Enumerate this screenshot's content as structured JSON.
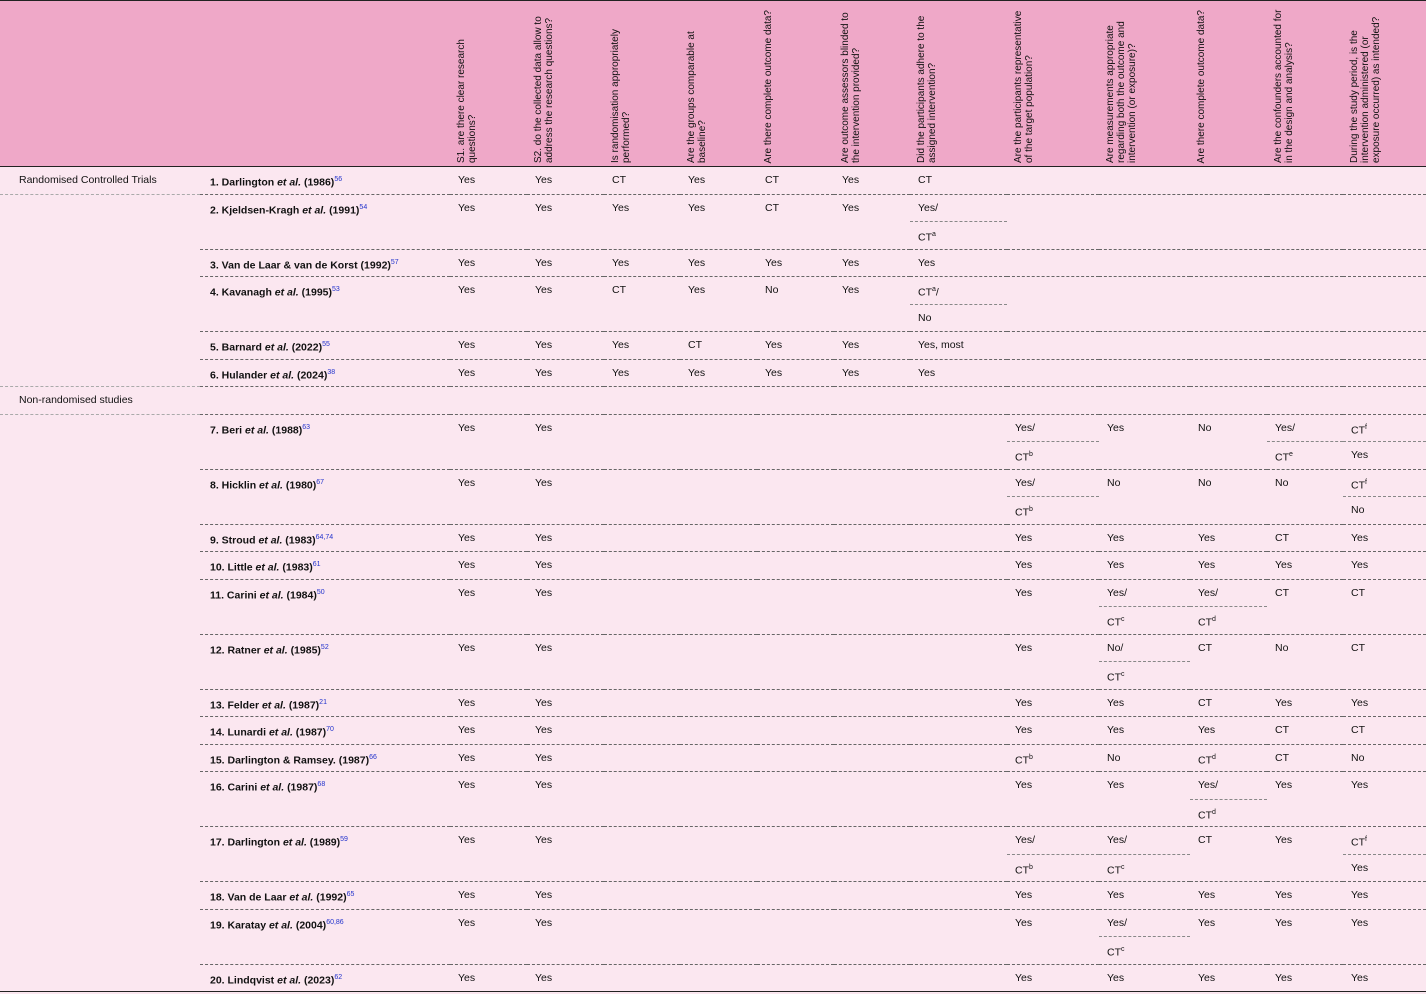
{
  "questions": [
    "S1. are there clear research questions?",
    "S2. do the collected data allow to address the research questions?",
    "Is randomisation appropriately performed?",
    "Are the groups comparable at baseline?",
    "Are there complete outcome data?",
    "Are outcome assessors blinded to the intervention provided?",
    "Did the participants adhere to the assigned intervention?",
    "Are the participants representative of the target population?",
    "Are measurements appropriate regarding both the outcome and intervention (or exposure)?",
    "Are there complete outcome data?",
    "Are the confounders accounted for in the design and analysis?",
    "During the study period, is the intervention administered (or exposure occurred) as intended?"
  ],
  "groups": [
    {
      "label": "Randomised Controlled Trials",
      "studies": [
        {
          "label_a": "1. Darlington",
          "etal": "et al.",
          "label_b": "(1986)",
          "ref": "56",
          "cells": [
            "Yes",
            "Yes",
            "CT",
            "Yes",
            "CT",
            "Yes",
            "CT",
            null,
            null,
            null,
            null,
            null
          ]
        },
        {
          "label_a": "2. Kjeldsen-Kragh",
          "etal": "et al.",
          "label_b": "(1991)",
          "ref": "54",
          "cells": [
            "Yes",
            "Yes",
            "Yes",
            "Yes",
            "CT",
            "Yes",
            [
              "Yes/",
              {
                "text": "CT",
                "sup": "a"
              }
            ],
            null,
            null,
            null,
            null,
            null
          ]
        },
        {
          "label_a": "3. Van de Laar & van de Korst (1992)",
          "ref": "57",
          "cells": [
            "Yes",
            "Yes",
            "Yes",
            "Yes",
            "Yes",
            "Yes",
            "Yes",
            null,
            null,
            null,
            null,
            null
          ]
        },
        {
          "label_a": "4. Kavanagh",
          "etal": "et al.",
          "label_b": "(1995)",
          "ref": "53",
          "cells": [
            "Yes",
            "Yes",
            "CT",
            "Yes",
            "No",
            "Yes",
            [
              {
                "text": "CT",
                "sup": "a",
                "after": "/"
              },
              "No"
            ],
            null,
            null,
            null,
            null,
            null
          ]
        },
        {
          "label_a": "5. Barnard",
          "etal": "et al.",
          "label_b": "(2022)",
          "ref": "55",
          "cells": [
            "Yes",
            "Yes",
            "Yes",
            "CT",
            "Yes",
            "Yes",
            "Yes, most",
            null,
            null,
            null,
            null,
            null
          ]
        },
        {
          "label_a": "6. Hulander",
          "etal": "et al.",
          "label_b": "(2024)",
          "ref": "38",
          "cells": [
            "Yes",
            "Yes",
            "Yes",
            "Yes",
            "Yes",
            "Yes",
            "Yes",
            null,
            null,
            null,
            null,
            null
          ]
        }
      ]
    },
    {
      "label": "Non-randomised studies",
      "studies": [
        {
          "label_a": "7. Beri",
          "etal": "et al.",
          "label_b": "(1988)",
          "ref": "63",
          "cells": [
            "Yes",
            "Yes",
            null,
            null,
            null,
            null,
            null,
            [
              "Yes/",
              {
                "text": "CT",
                "sup": "b"
              }
            ],
            "Yes",
            "No",
            [
              "Yes/",
              {
                "text": "CT",
                "sup": "e"
              }
            ],
            [
              {
                "text": "CT",
                "sup": "f"
              },
              "Yes"
            ]
          ]
        },
        {
          "label_a": "8. Hicklin",
          "etal": "et al.",
          "label_b": "(1980)",
          "ref": "67",
          "cells": [
            "Yes",
            "Yes",
            null,
            null,
            null,
            null,
            null,
            [
              "Yes/",
              {
                "text": "CT",
                "sup": "b"
              }
            ],
            "No",
            "No",
            "No",
            [
              {
                "text": "CT",
                "sup": "f"
              },
              "No"
            ]
          ]
        },
        {
          "label_a": "9. Stroud",
          "etal": "et al.",
          "label_b": "(1983)",
          "ref": "64,74",
          "cells": [
            "Yes",
            "Yes",
            null,
            null,
            null,
            null,
            null,
            "Yes",
            "Yes",
            "Yes",
            "CT",
            "Yes"
          ]
        },
        {
          "label_a": "10. Little",
          "etal": "et al.",
          "label_b": "(1983)",
          "ref": "61",
          "cells": [
            "Yes",
            "Yes",
            null,
            null,
            null,
            null,
            null,
            "Yes",
            "Yes",
            "Yes",
            "Yes",
            "Yes"
          ]
        },
        {
          "label_a": "11. Carini",
          "etal": "et al.",
          "label_b": "(1984)",
          "ref": "50",
          "cells": [
            "Yes",
            "Yes",
            null,
            null,
            null,
            null,
            null,
            "Yes",
            [
              "Yes/",
              {
                "text": "CT",
                "sup": "c"
              }
            ],
            [
              "Yes/",
              {
                "text": "CT",
                "sup": "d"
              }
            ],
            "CT",
            "CT"
          ]
        },
        {
          "label_a": "12. Ratner",
          "etal": "et al.",
          "label_b": "(1985)",
          "ref": "52",
          "cells": [
            "Yes",
            "Yes",
            null,
            null,
            null,
            null,
            null,
            "Yes",
            [
              "No/",
              {
                "text": "CT",
                "sup": "c"
              }
            ],
            "CT",
            "No",
            "CT"
          ]
        },
        {
          "label_a": "13. Felder",
          "etal": "et al.",
          "label_b": "(1987)",
          "ref": "21",
          "cells": [
            "Yes",
            "Yes",
            null,
            null,
            null,
            null,
            null,
            "Yes",
            "Yes",
            "CT",
            "Yes",
            "Yes"
          ]
        },
        {
          "label_a": "14. Lunardi",
          "etal": "et al.",
          "label_b": "(1987)",
          "ref": "70",
          "cells": [
            "Yes",
            "Yes",
            null,
            null,
            null,
            null,
            null,
            "Yes",
            "Yes",
            "Yes",
            "CT",
            "CT"
          ]
        },
        {
          "label_a": "15. Darlington & Ramsey. (1987)",
          "ref": "66",
          "cells": [
            "Yes",
            "Yes",
            null,
            null,
            null,
            null,
            null,
            {
              "text": "CT",
              "sup": "b"
            },
            "No",
            {
              "text": "CT",
              "sup": "d"
            },
            "CT",
            "No"
          ]
        },
        {
          "label_a": "16. Carini",
          "etal": "et al.",
          "label_b": "(1987)",
          "ref": "68",
          "cells": [
            "Yes",
            "Yes",
            null,
            null,
            null,
            null,
            null,
            "Yes",
            "Yes",
            [
              "Yes/",
              {
                "text": "CT",
                "sup": "d"
              }
            ],
            "Yes",
            "Yes"
          ]
        },
        {
          "label_a": "17. Darlington",
          "etal": "et al.",
          "label_b": "(1989)",
          "ref": "59",
          "cells": [
            "Yes",
            "Yes",
            null,
            null,
            null,
            null,
            null,
            [
              "Yes/",
              {
                "text": "CT",
                "sup": "b"
              }
            ],
            [
              "Yes/",
              {
                "text": "CT",
                "sup": "c"
              }
            ],
            "CT",
            "Yes",
            [
              {
                "text": "CT",
                "sup": "f"
              },
              "Yes"
            ]
          ]
        },
        {
          "label_a": "18. Van de Laar",
          "etal": "et al.",
          "label_b": "(1992)",
          "ref": "65",
          "cells": [
            "Yes",
            "Yes",
            null,
            null,
            null,
            null,
            null,
            "Yes",
            "Yes",
            "Yes",
            "Yes",
            "Yes"
          ]
        },
        {
          "label_a": "19. Karatay",
          "etal": "et al.",
          "label_b": "(2004)",
          "ref": "60,86",
          "cells": [
            "Yes",
            "Yes",
            null,
            null,
            null,
            null,
            null,
            "Yes",
            [
              "Yes/",
              {
                "text": "CT",
                "sup": "c"
              }
            ],
            "Yes",
            "Yes",
            "Yes"
          ]
        },
        {
          "label_a": "20. Lindqvist",
          "etal": "et al.",
          "label_b": "(2023)",
          "ref": "62",
          "cells": [
            "Yes",
            "Yes",
            null,
            null,
            null,
            null,
            null,
            "Yes",
            "Yes",
            "Yes",
            "Yes",
            "Yes"
          ]
        }
      ]
    }
  ]
}
